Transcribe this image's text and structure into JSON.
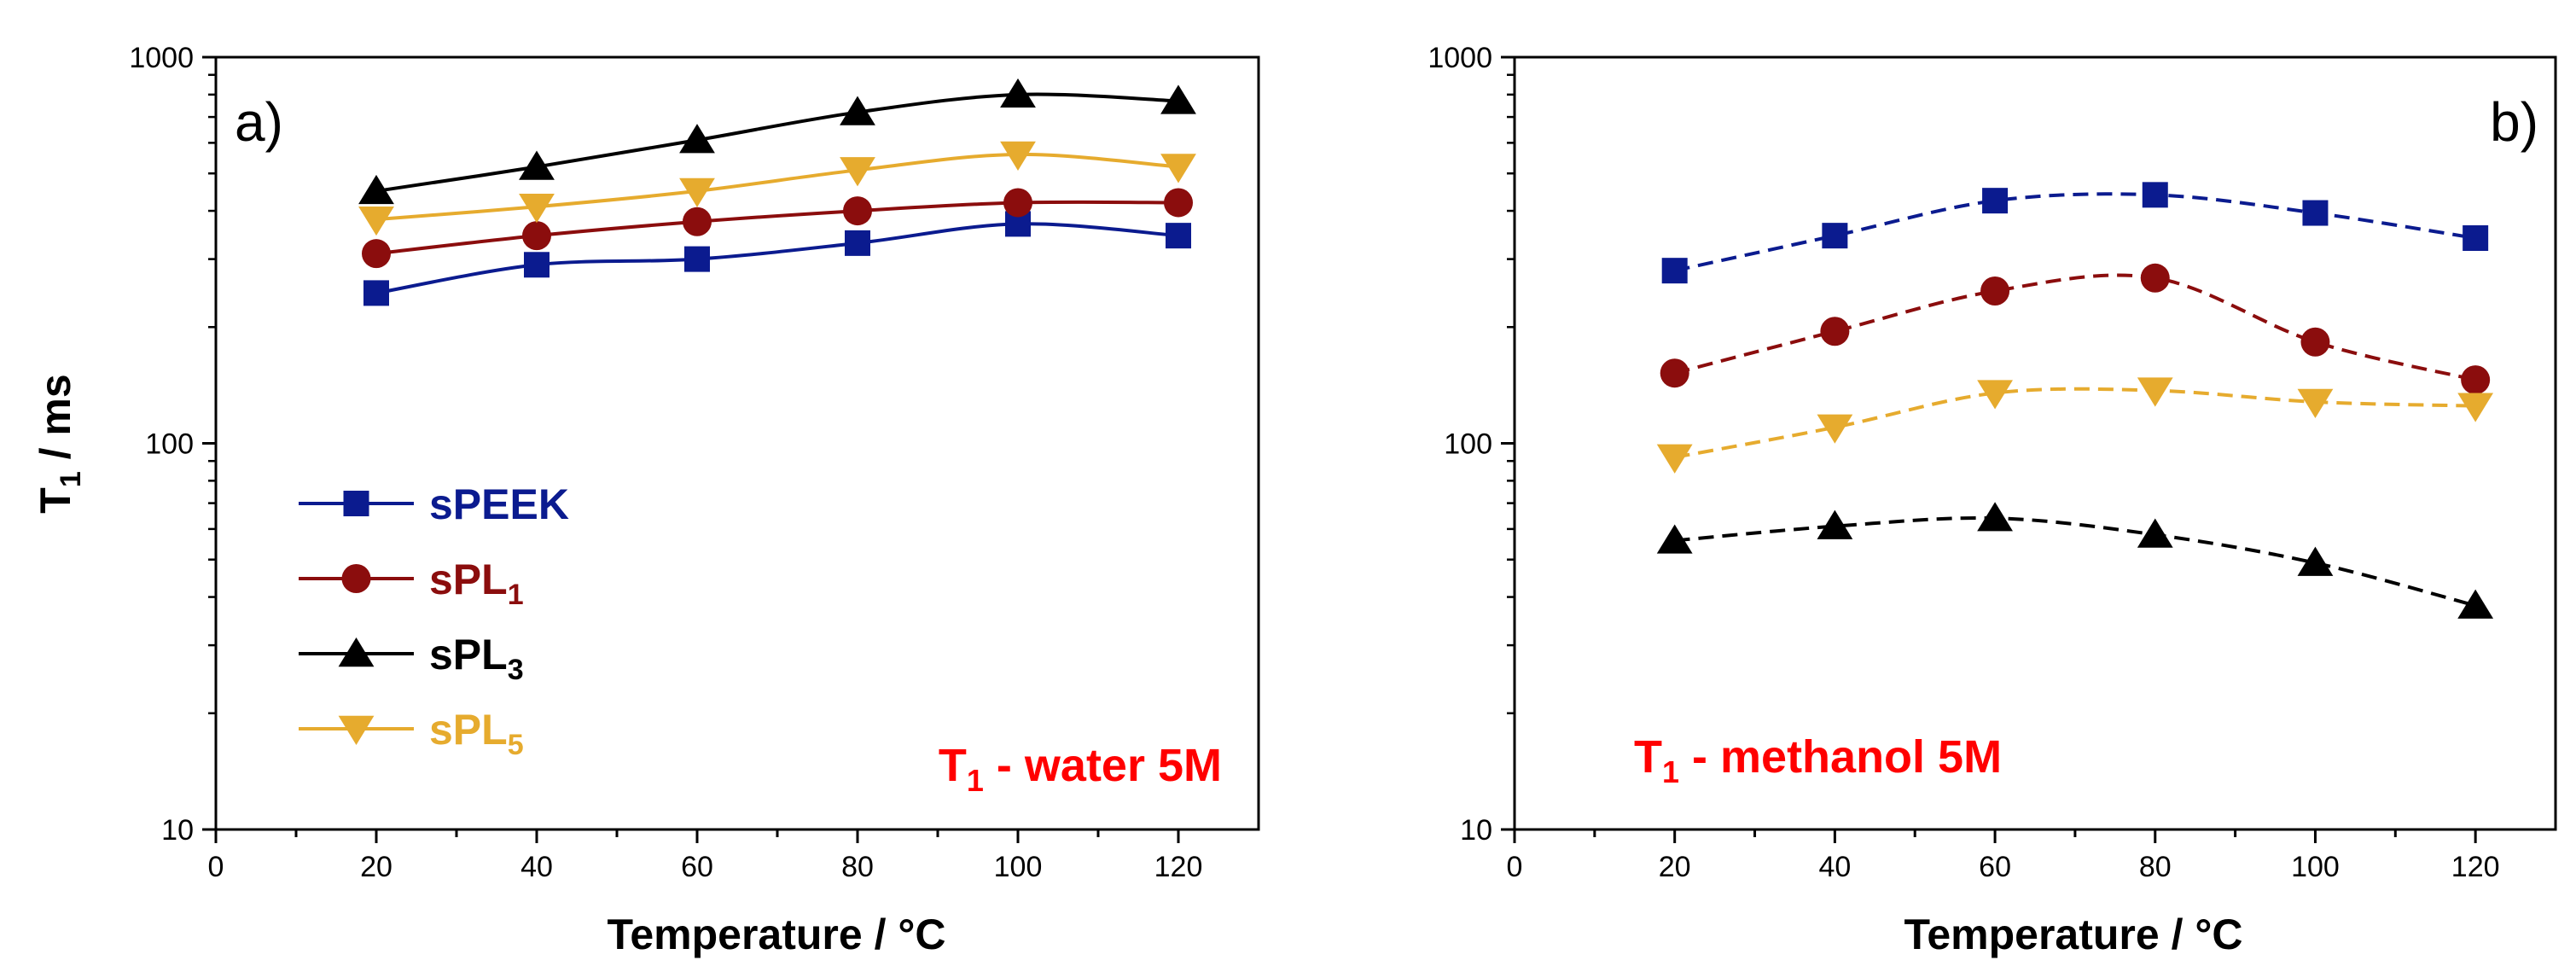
{
  "chart_data": [
    {
      "type": "line",
      "panel_label": "a)",
      "annotation": {
        "main": "T",
        "sub": "1",
        "tail": " - water  5M"
      },
      "xlabel": "Temperature / °C",
      "ylabel": {
        "main": "T",
        "sub": "1",
        "tail": " / ms"
      },
      "xlim": [
        0,
        130
      ],
      "ylim": [
        10,
        1000
      ],
      "yscale": "log",
      "xticks": [
        0,
        20,
        40,
        60,
        80,
        100,
        120
      ],
      "yticks": [
        10,
        100,
        1000
      ],
      "x": [
        20,
        40,
        60,
        80,
        100,
        120
      ],
      "line_style": "solid",
      "legend_position": "bottom-left",
      "series": [
        {
          "name": "sPEEK",
          "name_sub": "",
          "color": "#0b1b8f",
          "marker": "square",
          "values": [
            245,
            290,
            300,
            330,
            370,
            345
          ]
        },
        {
          "name": "sPL",
          "name_sub": "1",
          "color": "#8b0d0d",
          "marker": "circle",
          "values": [
            310,
            345,
            375,
            400,
            420,
            420
          ]
        },
        {
          "name": "sPL",
          "name_sub": "3",
          "color": "#000000",
          "marker": "triangle-up",
          "values": [
            450,
            520,
            610,
            720,
            800,
            770
          ]
        },
        {
          "name": "sPL",
          "name_sub": "5",
          "color": "#e6ab2e",
          "marker": "triangle-down",
          "values": [
            380,
            410,
            450,
            510,
            560,
            520
          ]
        }
      ]
    },
    {
      "type": "line",
      "panel_label": "b)",
      "annotation": {
        "main": "T",
        "sub": "1",
        "tail": " - methanol  5M"
      },
      "xlabel": "Temperature / °C",
      "xlim": [
        0,
        130
      ],
      "ylim": [
        10,
        1000
      ],
      "yscale": "log",
      "xticks": [
        0,
        20,
        40,
        60,
        80,
        100,
        120
      ],
      "yticks": [
        10,
        100,
        1000
      ],
      "x": [
        20,
        40,
        60,
        80,
        100,
        120
      ],
      "line_style": "dashed",
      "series": [
        {
          "name": "sPEEK",
          "color": "#0b1b8f",
          "marker": "square",
          "values": [
            280,
            345,
            425,
            440,
            395,
            340
          ]
        },
        {
          "name": "sPL1",
          "color": "#8b0d0d",
          "marker": "circle",
          "values": [
            152,
            195,
            248,
            268,
            183,
            146
          ]
        },
        {
          "name": "sPL5",
          "color": "#e6ab2e",
          "marker": "triangle-down",
          "values": [
            92,
            110,
            135,
            137,
            128,
            125
          ]
        },
        {
          "name": "sPL3",
          "color": "#000000",
          "marker": "triangle-up",
          "values": [
            56,
            61,
            64,
            58,
            49,
            38
          ]
        }
      ]
    }
  ],
  "styles": {
    "annotation_color": "#ff0000",
    "axis_color": "#000000"
  }
}
